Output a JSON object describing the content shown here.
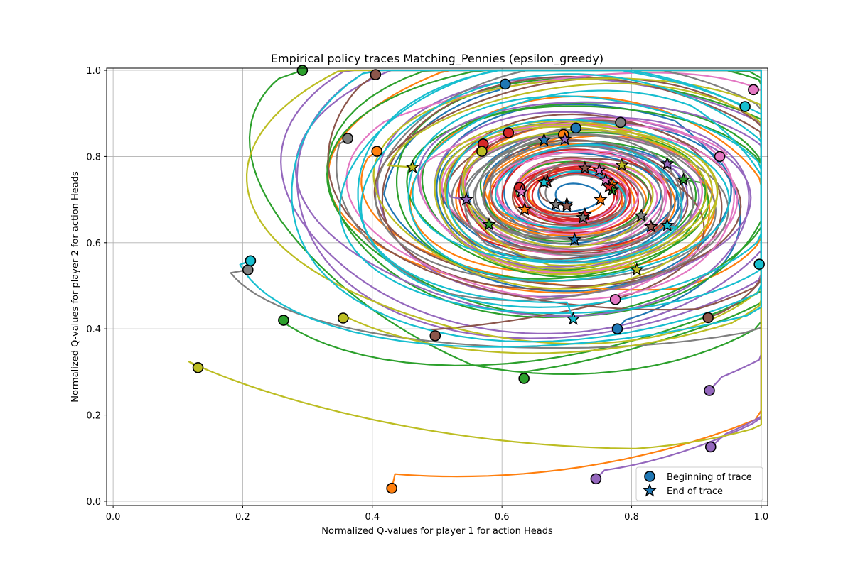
{
  "chart_data": {
    "type": "line",
    "title": "Empirical policy traces Matching_Pennies (epsilon_greedy)",
    "xlabel": "Normalized Q-values for player 1 for action Heads",
    "ylabel": "Normalized Q-values for player 2 for action Heads",
    "xlim": [
      -0.01,
      1.01
    ],
    "ylim": [
      -0.01,
      1.005
    ],
    "xticks": [
      "0.0",
      "0.2",
      "0.4",
      "0.6",
      "0.8",
      "1.0"
    ],
    "yticks": [
      "0.0",
      "0.2",
      "0.4",
      "0.6",
      "0.8",
      "1.0"
    ],
    "grid": true,
    "legend": {
      "position": "bottom-right",
      "entries": [
        "Beginning of trace",
        "End of trace"
      ]
    },
    "center": [
      0.71,
      0.71
    ],
    "series": [
      {
        "color": "#1f77b4",
        "start": [
          0.605,
          0.968
        ],
        "end": [
          0.665,
          0.838
        ]
      },
      {
        "color": "#1f77b4",
        "start": [
          0.714,
          0.866
        ],
        "end": [
          0.712,
          0.607
        ]
      },
      {
        "color": "#1f77b4",
        "start": [
          0.778,
          0.4
        ],
        "end": [
          0.7,
          0.69
        ]
      },
      {
        "color": "#ff7f0e",
        "start": [
          0.407,
          0.812
        ],
        "end": [
          0.635,
          0.677
        ]
      },
      {
        "color": "#ff7f0e",
        "start": [
          0.695,
          0.851
        ],
        "end": [
          0.752,
          0.7
        ]
      },
      {
        "color": "#ff7f0e",
        "start": [
          0.43,
          0.03
        ],
        "end": [
          0.77,
          0.735
        ]
      },
      {
        "color": "#2ca02c",
        "start": [
          0.292,
          1.0
        ],
        "end": [
          0.58,
          0.642
        ]
      },
      {
        "color": "#2ca02c",
        "start": [
          0.263,
          0.42
        ],
        "end": [
          0.77,
          0.722
        ]
      },
      {
        "color": "#2ca02c",
        "start": [
          0.634,
          0.285
        ],
        "end": [
          0.88,
          0.746
        ]
      },
      {
        "color": "#d62728",
        "start": [
          0.571,
          0.829
        ],
        "end": [
          0.728,
          0.665
        ]
      },
      {
        "color": "#d62728",
        "start": [
          0.61,
          0.855
        ],
        "end": [
          0.67,
          0.742
        ]
      },
      {
        "color": "#d62728",
        "start": [
          0.627,
          0.728
        ],
        "end": [
          0.765,
          0.73
        ]
      },
      {
        "color": "#9467bd",
        "start": [
          0.745,
          0.052
        ],
        "end": [
          0.545,
          0.7
        ]
      },
      {
        "color": "#9467bd",
        "start": [
          0.922,
          0.126
        ],
        "end": [
          0.697,
          0.84
        ]
      },
      {
        "color": "#9467bd",
        "start": [
          0.92,
          0.257
        ],
        "end": [
          0.855,
          0.783
        ]
      },
      {
        "color": "#8c564b",
        "start": [
          0.405,
          0.99
        ],
        "end": [
          0.728,
          0.773
        ]
      },
      {
        "color": "#8c564b",
        "start": [
          0.497,
          0.384
        ],
        "end": [
          0.7,
          0.685
        ]
      },
      {
        "color": "#8c564b",
        "start": [
          0.918,
          0.426
        ],
        "end": [
          0.83,
          0.637
        ]
      },
      {
        "color": "#e377c2",
        "start": [
          0.988,
          0.955
        ],
        "end": [
          0.75,
          0.768
        ]
      },
      {
        "color": "#e377c2",
        "start": [
          0.936,
          0.8
        ],
        "end": [
          0.76,
          0.745
        ]
      },
      {
        "color": "#e377c2",
        "start": [
          0.775,
          0.468
        ],
        "end": [
          0.63,
          0.718
        ]
      },
      {
        "color": "#7f7f7f",
        "start": [
          0.362,
          0.842
        ],
        "end": [
          0.683,
          0.688
        ]
      },
      {
        "color": "#7f7f7f",
        "start": [
          0.208,
          0.537
        ],
        "end": [
          0.725,
          0.658
        ]
      },
      {
        "color": "#7f7f7f",
        "start": [
          0.783,
          0.879
        ],
        "end": [
          0.815,
          0.662
        ]
      },
      {
        "color": "#bcbd22",
        "start": [
          0.131,
          0.31
        ],
        "end": [
          0.462,
          0.775
        ]
      },
      {
        "color": "#bcbd22",
        "start": [
          0.355,
          0.425
        ],
        "end": [
          0.785,
          0.78
        ]
      },
      {
        "color": "#bcbd22",
        "start": [
          0.569,
          0.812
        ],
        "end": [
          0.808,
          0.537
        ]
      },
      {
        "color": "#17becf",
        "start": [
          0.212,
          0.558
        ],
        "end": [
          0.855,
          0.64
        ]
      },
      {
        "color": "#17becf",
        "start": [
          0.975,
          0.916
        ],
        "end": [
          0.71,
          0.423
        ]
      },
      {
        "color": "#17becf",
        "start": [
          0.997,
          0.55
        ],
        "end": [
          0.665,
          0.74
        ]
      }
    ]
  }
}
